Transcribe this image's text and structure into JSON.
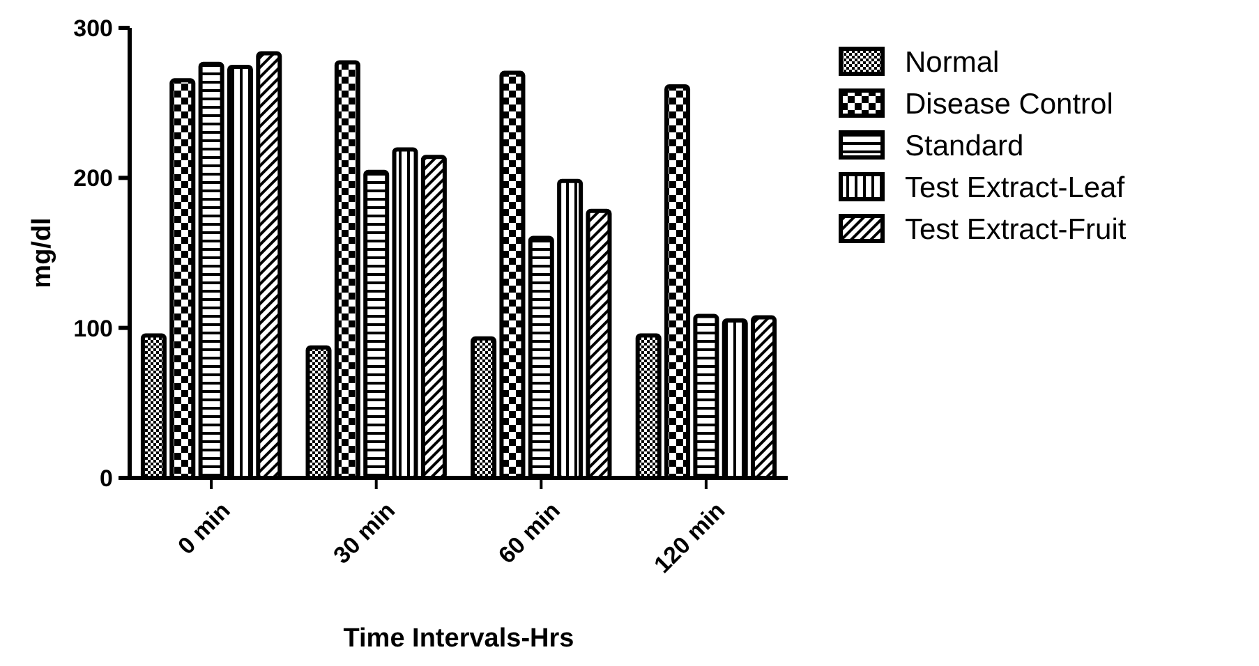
{
  "chart_data": {
    "type": "bar",
    "xlabel": "Time Intervals-Hrs",
    "ylabel": "mg/dl",
    "categories": [
      "0 min",
      "30 min",
      "60 min",
      "120 min"
    ],
    "series": [
      {
        "name": "Normal",
        "color": "#000000",
        "values": [
          95,
          87,
          93,
          95
        ]
      },
      {
        "name": "Disease Control",
        "color": "#000000",
        "values": [
          265,
          277,
          270,
          261
        ]
      },
      {
        "name": "Standard",
        "color": "#000000",
        "values": [
          276,
          204,
          160,
          108
        ]
      },
      {
        "name": "Test Extract-Leaf",
        "color": "#000000",
        "values": [
          274,
          219,
          198,
          105
        ]
      },
      {
        "name": "Test Extract-Fruit",
        "color": "#000000",
        "values": [
          283,
          214,
          178,
          107
        ]
      }
    ],
    "ylim": [
      0,
      300
    ],
    "yticks": [
      0,
      100,
      200,
      300
    ],
    "grid": false,
    "legend": "right"
  }
}
